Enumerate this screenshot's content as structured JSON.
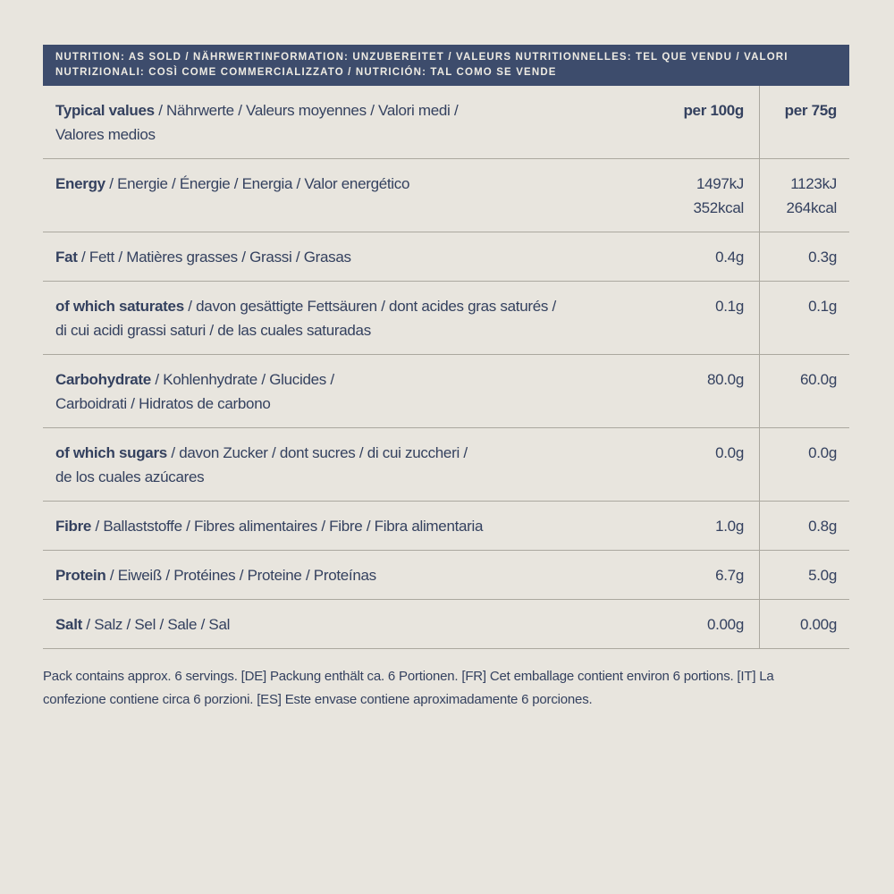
{
  "page": {
    "background": "#e8e5de",
    "accent_navy": "#3d4c6c",
    "text_color": "#34415f",
    "rule_color": "#aba89f"
  },
  "banner": {
    "lines": [
      "NUTRITION: AS SOLD / NÄHRWERTINFORMATION: UNZUBEREITET / VALEURS NUTRITIONNELLES: TEL QUE VENDU / VALORI",
      "NUTRIZIONALI: COSÌ COME COMMERCIALIZZATO / NUTRICIÓN: TAL COMO SE VENDE"
    ]
  },
  "table": {
    "header": {
      "bold": "Typical values",
      "rest": " / Nährwerte / Valeurs moyennes / Valori medi /",
      "line2": "Valores medios",
      "col1": "per 100g",
      "col2": "per 75g"
    },
    "rows": [
      {
        "bold": "Energy",
        "rest": " / Energie / Énergie / Energia / Valor energético",
        "line2": "",
        "v100_1": "1497kJ",
        "v100_2": "352kcal",
        "v75_1": "1123kJ",
        "v75_2": "264kcal"
      },
      {
        "bold": "Fat",
        "rest": " / Fett / Matières grasses / Grassi / Grasas",
        "line2": "",
        "v100_1": "0.4g",
        "v100_2": "",
        "v75_1": "0.3g",
        "v75_2": ""
      },
      {
        "bold": "of which saturates",
        "rest": " / davon gesättigte Fettsäuren / dont acides gras saturés /",
        "line2": "di cui acidi grassi saturi / de las cuales saturadas",
        "v100_1": "0.1g",
        "v100_2": "",
        "v75_1": "0.1g",
        "v75_2": ""
      },
      {
        "bold": "Carbohydrate",
        "rest": " / Kohlenhydrate / Glucides /",
        "line2": "Carboidrati / Hidratos de carbono",
        "v100_1": "80.0g",
        "v100_2": "",
        "v75_1": "60.0g",
        "v75_2": ""
      },
      {
        "bold": "of which sugars",
        "rest": " / davon Zucker / dont sucres / di cui zuccheri /",
        "line2": "de los cuales azúcares",
        "v100_1": "0.0g",
        "v100_2": "",
        "v75_1": "0.0g",
        "v75_2": ""
      },
      {
        "bold": "Fibre",
        "rest": " / Ballaststoffe / Fibres alimentaires / Fibre / Fibra alimentaria",
        "line2": "",
        "v100_1": "1.0g",
        "v100_2": "",
        "v75_1": "0.8g",
        "v75_2": ""
      },
      {
        "bold": "Protein",
        "rest": " / Eiweiß / Protéines / Proteine / Proteínas",
        "line2": "",
        "v100_1": "6.7g",
        "v100_2": "",
        "v75_1": "5.0g",
        "v75_2": ""
      },
      {
        "bold": "Salt",
        "rest": " / Salz / Sel / Sale / Sal",
        "line2": "",
        "v100_1": "0.00g",
        "v100_2": "",
        "v75_1": "0.00g",
        "v75_2": ""
      }
    ]
  },
  "footer": {
    "text": "Pack contains approx. 6 servings. [DE] Packung enthält ca. 6 Portionen. [FR] Cet emballage contient environ 6 portions. [IT] La confezione contiene circa 6 porzioni. [ES] Este envase contiene aproximadamente 6 porciones."
  }
}
